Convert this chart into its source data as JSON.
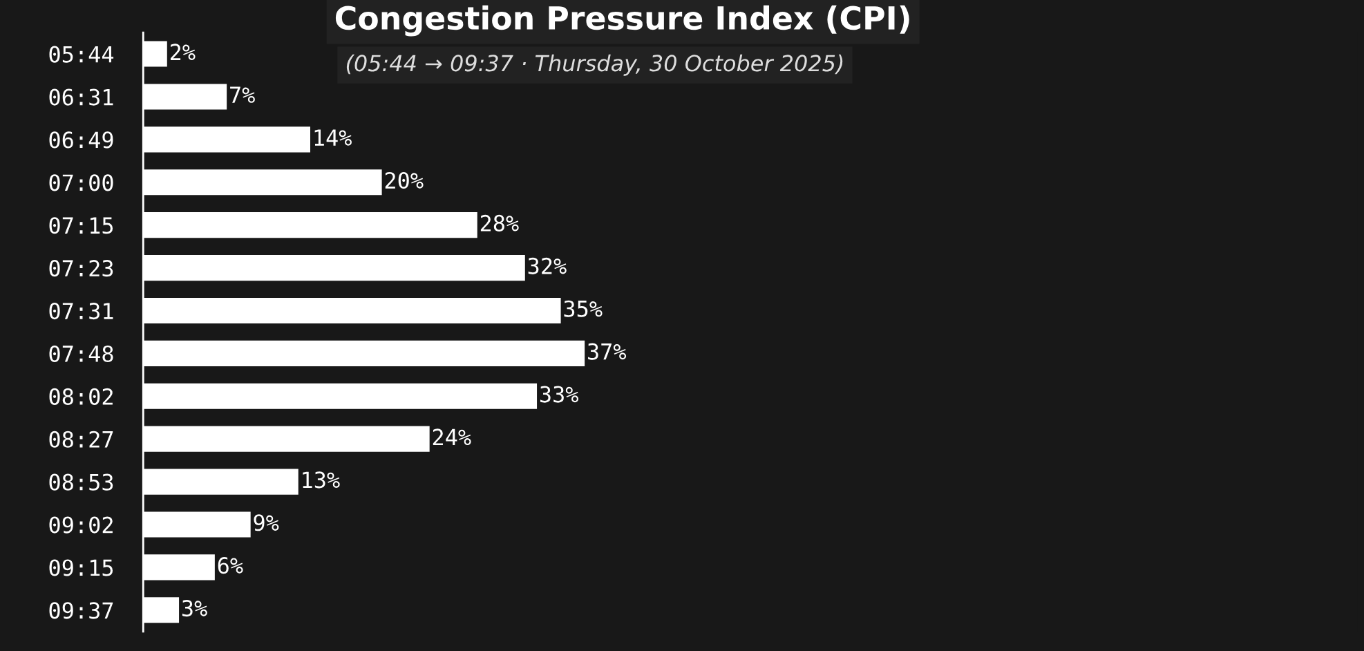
{
  "chart_data": {
    "type": "bar",
    "orientation": "horizontal",
    "title": "Congestion Pressure Index (CPI)",
    "subtitle": "(05:44 → 09:37 · Thursday, 30 October 2025)",
    "categories": [
      "05:44",
      "06:31",
      "06:49",
      "07:00",
      "07:15",
      "07:23",
      "07:31",
      "07:48",
      "08:02",
      "08:27",
      "08:53",
      "09:02",
      "09:15",
      "09:37"
    ],
    "values": [
      2,
      7,
      14,
      20,
      28,
      32,
      35,
      37,
      33,
      24,
      13,
      9,
      6,
      3
    ],
    "value_labels": [
      "2%",
      "7%",
      "14%",
      "20%",
      "28%",
      "32%",
      "35%",
      "37%",
      "33%",
      "24%",
      "13%",
      "9%",
      "6%",
      "3%"
    ],
    "color": "#ffffff",
    "grid": false,
    "legend": false
  }
}
